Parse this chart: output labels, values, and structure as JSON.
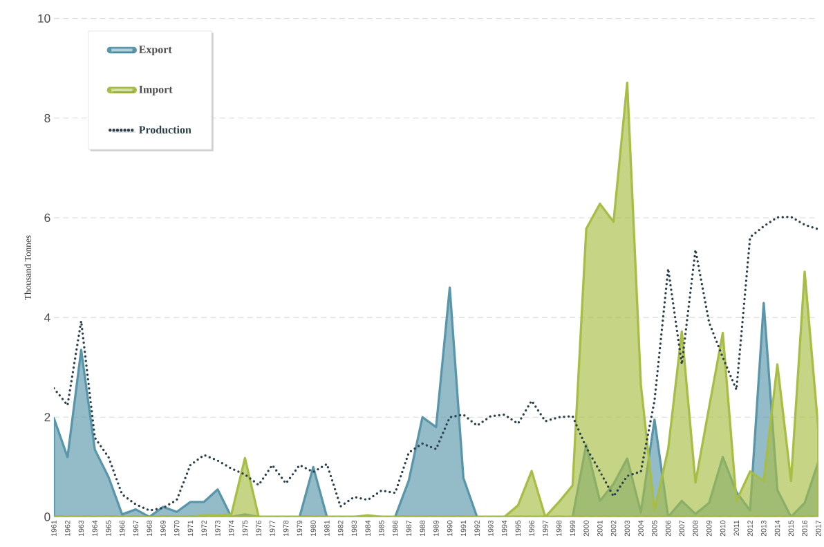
{
  "chart_data": {
    "type": "area",
    "ylabel": "Thousand Tonnes",
    "categories": [
      "1961",
      "1962",
      "1963",
      "1964",
      "1965",
      "1966",
      "1967",
      "1968",
      "1969",
      "1970",
      "1971",
      "1972",
      "1973",
      "1974",
      "1975",
      "1976",
      "1977",
      "1978",
      "1979",
      "1980",
      "1981",
      "1982",
      "1983",
      "1984",
      "1985",
      "1986",
      "1987",
      "1988",
      "1989",
      "1990",
      "1991",
      "1992",
      "1993",
      "1994",
      "1995",
      "1996",
      "1997",
      "1998",
      "1999",
      "2000",
      "2001",
      "2002",
      "2003",
      "2004",
      "2005",
      "2006",
      "2007",
      "2008",
      "2009",
      "2010",
      "2011",
      "2012",
      "2013",
      "2014",
      "2015",
      "2016",
      "2017"
    ],
    "series": [
      {
        "name": "Export",
        "color": "#5a96aa",
        "values": [
          1.98,
          1.2,
          3.35,
          1.35,
          0.8,
          0.05,
          0.15,
          0,
          0.2,
          0.1,
          0.3,
          0.3,
          0.55,
          0,
          0.05,
          0,
          0,
          0,
          0,
          1.0,
          0,
          0,
          0,
          0,
          0,
          0,
          0.73,
          2.0,
          1.8,
          4.6,
          0.78,
          0,
          0,
          0,
          0,
          0,
          0,
          0,
          0,
          1.45,
          0.32,
          0.66,
          1.17,
          0.09,
          1.95,
          0,
          0.32,
          0.06,
          0.28,
          1.2,
          0.5,
          0.13,
          4.29,
          0.54,
          0,
          0.28,
          1.1
        ]
      },
      {
        "name": "Import",
        "color": "#a7bd45",
        "values": [
          0,
          0,
          0,
          0,
          0,
          0,
          0,
          0,
          0,
          0,
          0,
          0.03,
          0.03,
          0.05,
          1.18,
          0,
          0,
          0,
          0,
          0,
          0,
          0,
          0,
          0.03,
          0,
          0,
          0,
          0,
          0,
          0,
          0,
          0,
          0,
          0,
          0.23,
          0.92,
          0,
          0.3,
          0.63,
          5.78,
          6.28,
          5.92,
          8.71,
          2.65,
          0.13,
          1.36,
          3.72,
          0.69,
          2.2,
          3.69,
          0.32,
          0.91,
          0.72,
          3.06,
          0.72,
          4.92,
          1.76
        ]
      },
      {
        "name": "Production",
        "type": "line",
        "line_style": "dotted",
        "color": "#2a3f4a",
        "values": [
          2.58,
          2.24,
          3.93,
          1.59,
          1.2,
          0.45,
          0.25,
          0.13,
          0.18,
          0.34,
          1.04,
          1.24,
          1.13,
          0.97,
          0.85,
          0.64,
          1.04,
          0.67,
          1.04,
          0.9,
          1.06,
          0.21,
          0.4,
          0.34,
          0.53,
          0.48,
          1.29,
          1.47,
          1.36,
          2.0,
          2.05,
          1.83,
          2.02,
          2.05,
          1.87,
          2.33,
          1.92,
          2.0,
          2.02,
          1.39,
          0.91,
          0.41,
          0.82,
          0.91,
          2.33,
          4.98,
          3.06,
          5.36,
          3.9,
          3.2,
          2.55,
          5.61,
          5.83,
          6.01,
          6.02,
          5.86,
          5.77
        ]
      }
    ],
    "ylim": [
      0,
      10
    ],
    "yticks": [
      0,
      2,
      4,
      6,
      8,
      10
    ],
    "grid": "y",
    "legend": "top left"
  }
}
